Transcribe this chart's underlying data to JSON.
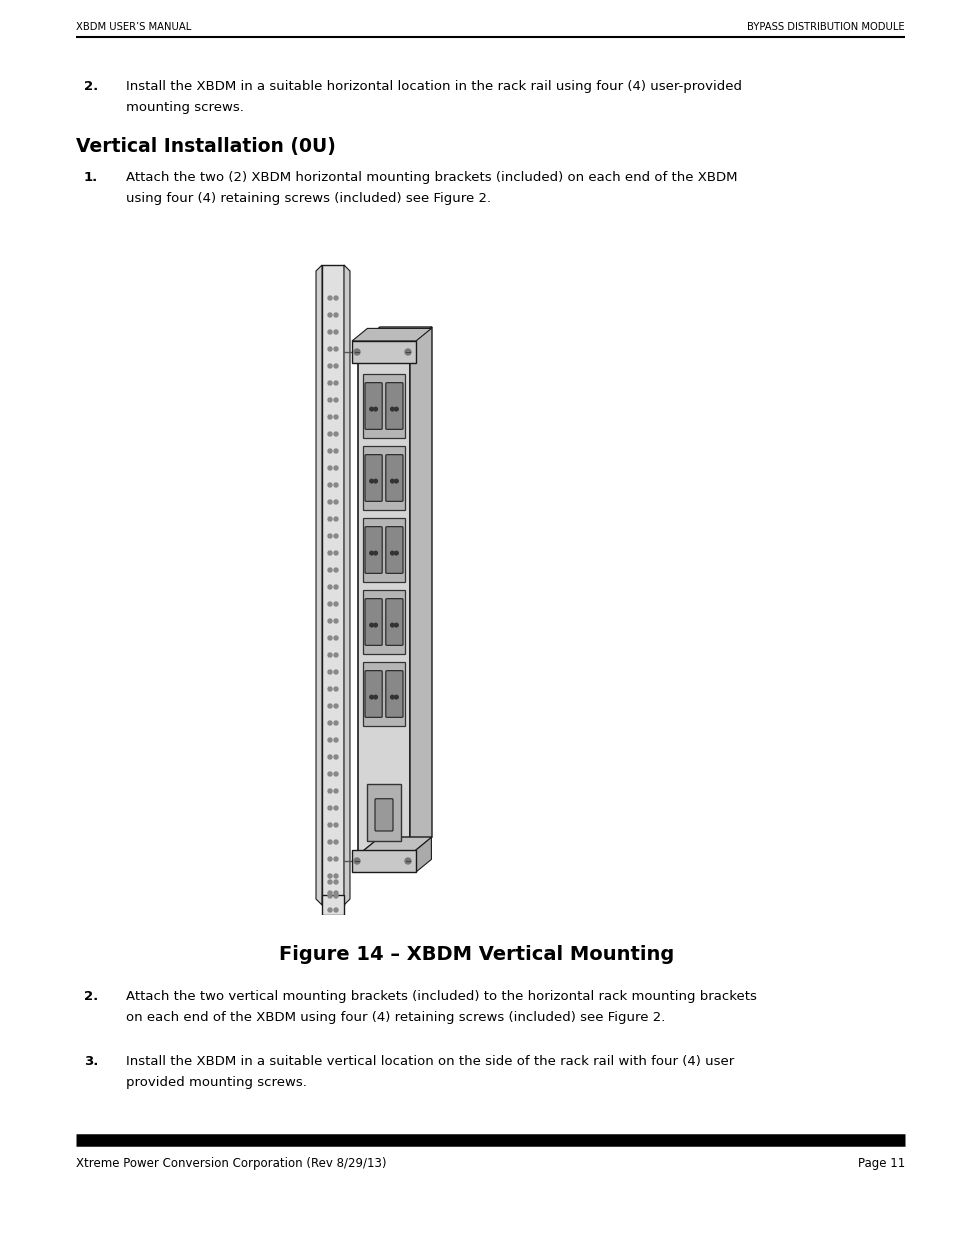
{
  "header_left": "XBDM USER’S MANUAL",
  "header_right": "BYPASS DISTRIBUTION MODULE",
  "footer_left": "Xtreme Power Conversion Corporation (Rev 8/29/13)",
  "footer_right": "Page 11",
  "item2_text_line1": "Install the XBDM in a suitable horizontal location in the rack rail using four (4) user-provided",
  "item2_text_line2": "mounting screws.",
  "section_title": "Vertical Installation (0U)",
  "item1_text_line1": "Attach the two (2) XBDM horizontal mounting brackets (included) on each end of the XBDM",
  "item1_text_line2": "using four (4) retaining screws (included) see Figure 2.",
  "figure_caption": "Figure 14 – XBDM Vertical Mounting",
  "item2b_text_line1": "Attach the two vertical mounting brackets (included) to the horizontal rack mounting brackets",
  "item2b_text_line2": "on each end of the XBDM using four (4) retaining screws (included) see Figure 2.",
  "item3_text_line1": "Install the XBDM in a suitable vertical location on the side of the rack rail with four (4) user",
  "item3_text_line2": "provided mounting screws.",
  "bg_color": "#ffffff",
  "text_color": "#000000",
  "header_bar_color": "#000000"
}
